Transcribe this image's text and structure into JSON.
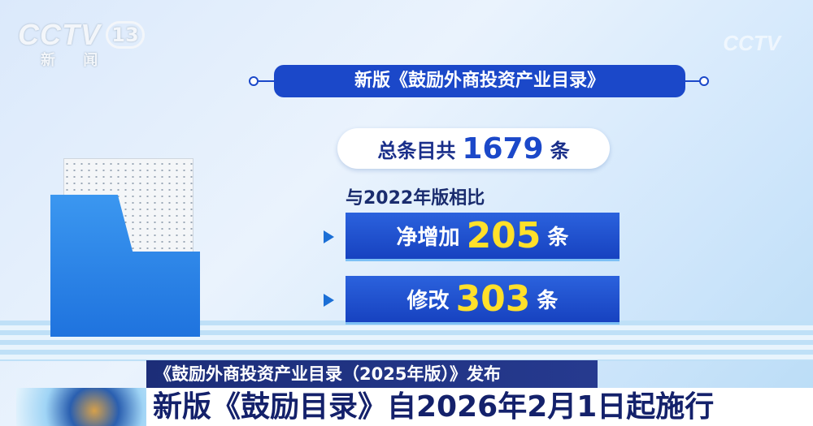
{
  "logo": {
    "brand": "CCTV",
    "channel": "13",
    "name": "新 闻"
  },
  "watermark": "CCTV",
  "graphic": {
    "title": "新版《鼓励外商投资产业目录》",
    "total": {
      "prefix": "总条目共",
      "value": "1679",
      "suffix": "条"
    },
    "compare_label": "与2022年版相比",
    "items": [
      {
        "prefix": "净增加",
        "value": "205",
        "suffix": "条"
      },
      {
        "prefix": "修改",
        "value": "303",
        "suffix": "条"
      }
    ]
  },
  "lower_third": {
    "line1": "《鼓励外商投资产业目录（2025年版）》发布",
    "line2": "新版《鼓励目录》自2026年2月1日起施行"
  },
  "colors": {
    "accent": "#1b48c9",
    "highlight": "#ffe02a",
    "navy": "#1c2d78"
  }
}
